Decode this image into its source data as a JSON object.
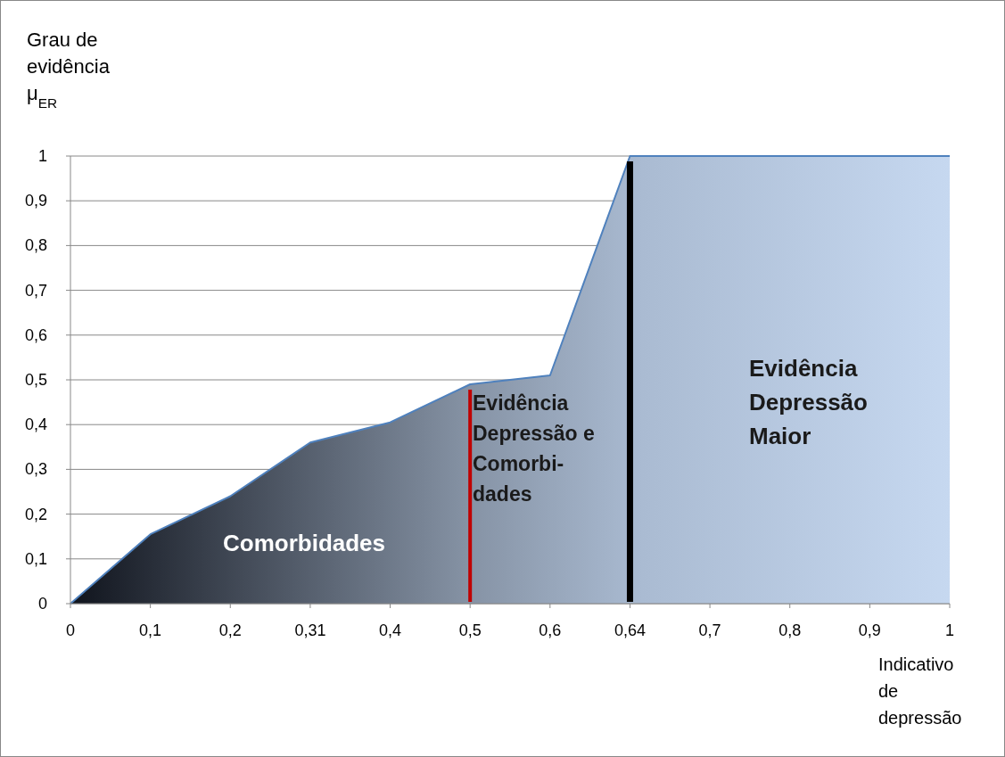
{
  "chart_data": {
    "type": "area",
    "ylabel": "Grau de\nevidência\nμ$_{ER}$",
    "xlabel": "Indicativo\nde\ndepressão",
    "categories": [
      "0",
      "0,1",
      "0,2",
      "0,31",
      "0,4",
      "0,5",
      "0,6",
      "0,64",
      "0,7",
      "0,8",
      "0,9",
      "1"
    ],
    "series": [
      {
        "color": "#4f81bd",
        "values": [
          0,
          0.155,
          0.24,
          0.36,
          0.405,
          0.49,
          0.51,
          1,
          1,
          1,
          1,
          1
        ]
      }
    ],
    "ylim": [
      0,
      1
    ],
    "yticks": [
      0,
      {
        "value": 0.1,
        "label": "0,1"
      },
      {
        "value": 0.2,
        "label": "0,2"
      },
      {
        "value": 0.3,
        "label": "0,3"
      },
      {
        "value": 0.4,
        "label": "0,4"
      },
      {
        "value": 0.5,
        "label": "0,5"
      },
      {
        "value": 0.6,
        "label": "0,6"
      },
      {
        "value": 0.7,
        "label": "0,7"
      },
      {
        "value": 0.8,
        "label": "0,8"
      },
      {
        "value": 0.9,
        "label": "0,9"
      },
      1
    ],
    "grid": "y",
    "ref_lines": [
      {
        "axis": "x",
        "value": "0,5",
        "color": "#c00000"
      },
      {
        "axis": "x",
        "value": "0,64",
        "color": "#000000"
      }
    ],
    "annotations": [
      "Comorbidades",
      "Evidência\nDepressão e\nComorbi-\ndades",
      "Evidência\nDepressão\nMaior"
    ]
  }
}
